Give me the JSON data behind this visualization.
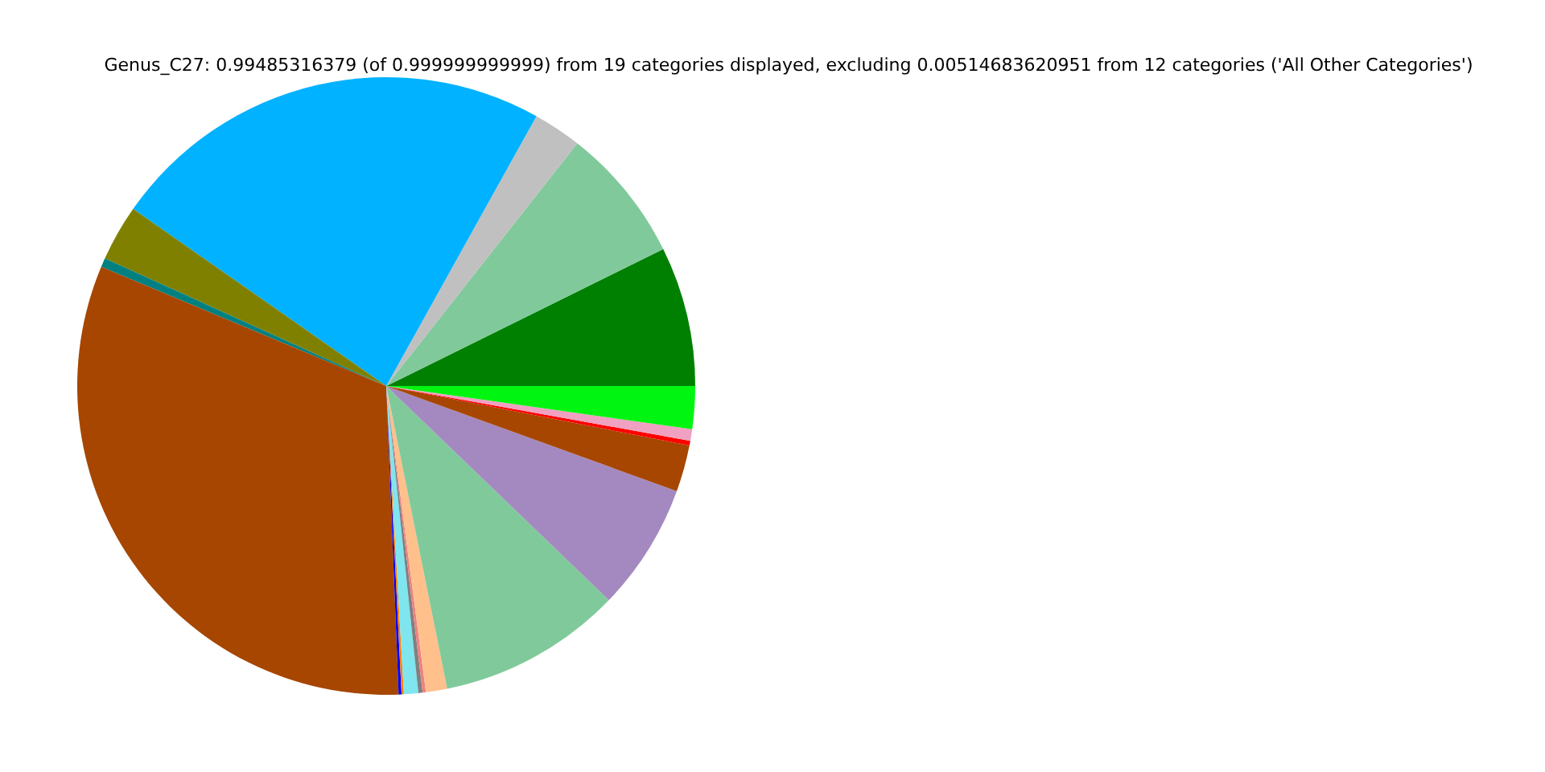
{
  "chart_data": {
    "type": "pie",
    "title": "Genus_C27: 0.99485316379 (of 0.999999999999) from 19 categories displayed, excluding 0.00514683620951 from 12 categories ('All Other Categories')",
    "categories": [
      null,
      null,
      null,
      null,
      null,
      null,
      null,
      null,
      null,
      null,
      null,
      null,
      null,
      null,
      null,
      null,
      null,
      null,
      null
    ],
    "values": [
      7.31,
      7.08,
      2.53,
      23.36,
      2.94,
      0.47,
      31.95,
      0.15,
      0.12,
      0.75,
      0.22,
      0.17,
      1.11,
      9.64,
      6.67,
      2.44,
      0.25,
      0.6,
      2.24
    ],
    "colors": [
      "#008000",
      "#80c99b",
      "#c0c0c0",
      "#00b2ff",
      "#808000",
      "#008080",
      "#a64600",
      "#0000ff",
      "#ff8000",
      "#7fe5ef",
      "#808080",
      "#f08080",
      "#ffc08c",
      "#80c99b",
      "#a489c0",
      "#a64600",
      "#ff0000",
      "#f0a0c0",
      "#00f510"
    ],
    "legend": false
  }
}
